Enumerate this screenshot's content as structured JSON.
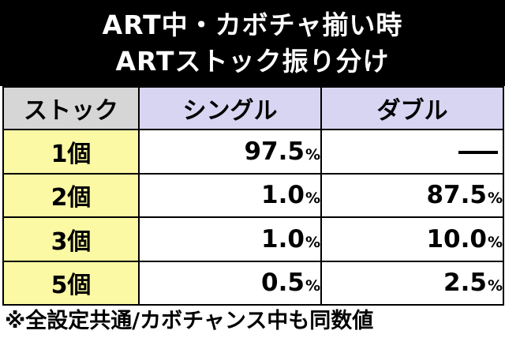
{
  "title": {
    "line1": "ART中・カボチャ揃い時",
    "line2": "ARTストック振り分け"
  },
  "table": {
    "headers": {
      "stock": "ストック",
      "single": "シングル",
      "double": "ダブル"
    },
    "percent_sign": "%",
    "rows": [
      {
        "label": "1個",
        "single": "97.5",
        "double": "—"
      },
      {
        "label": "2個",
        "single": "1.0",
        "double": "87.5"
      },
      {
        "label": "3個",
        "single": "1.0",
        "double": "10.0"
      },
      {
        "label": "5個",
        "single": "0.5",
        "double": "2.5"
      }
    ]
  },
  "note": "※全設定共通/カボチャンス中も同数値",
  "colors": {
    "title_bg": "#000000",
    "title_text": "#ffffff",
    "header_stock_bg": "#d6d6d6",
    "header_col_bg": "#d8d5f2",
    "row_label_bg": "#fbf9a4"
  }
}
